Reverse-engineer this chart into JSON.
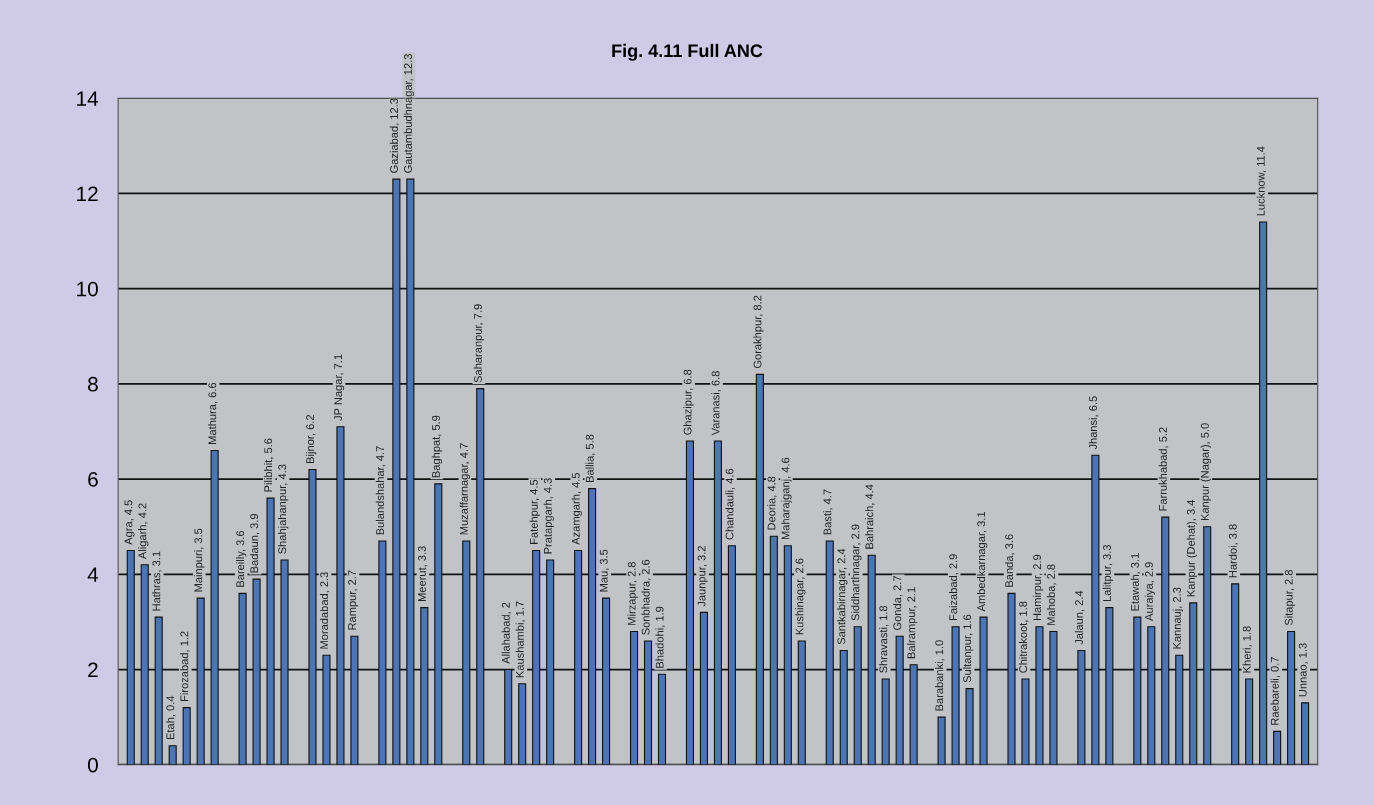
{
  "chart_data": {
    "type": "bar",
    "title": "Fig. 4.11 Full ANC",
    "categories": [
      null,
      null,
      null,
      null,
      null,
      null,
      null,
      null,
      null,
      null,
      null,
      null,
      null,
      null,
      null,
      null,
      null,
      null,
      null,
      null,
      null,
      null,
      null,
      null,
      null,
      null,
      null,
      null,
      null,
      null,
      null,
      null,
      null,
      null,
      null,
      null,
      null,
      null,
      null,
      null,
      null,
      null,
      null,
      null,
      null,
      null,
      null,
      null,
      null,
      null,
      null,
      null,
      null,
      null,
      null,
      null,
      null,
      null,
      null,
      null,
      null,
      null,
      null,
      null,
      null,
      null,
      null,
      null,
      null,
      null,
      null,
      null,
      null,
      null,
      null,
      null,
      null,
      null,
      null,
      null,
      null,
      null,
      null,
      null,
      null
    ],
    "values": [
      4.5,
      4.2,
      3.1,
      0.4,
      1.2,
      3.5,
      6.6,
      null,
      3.6,
      3.9,
      5.6,
      4.3,
      null,
      6.2,
      2.3,
      7.1,
      2.7,
      null,
      4.7,
      12.3,
      12.3,
      3.3,
      5.9,
      null,
      4.7,
      7.9,
      null,
      2,
      1.7,
      4.5,
      4.3,
      null,
      4.5,
      5.8,
      3.5,
      null,
      2.8,
      2.6,
      1.9,
      null,
      6.8,
      3.2,
      6.8,
      4.6,
      null,
      8.2,
      4.8,
      4.6,
      2.6,
      null,
      4.7,
      2.4,
      2.9,
      4.4,
      1.8,
      2.7,
      2.1,
      null,
      1.0,
      2.9,
      1.6,
      3.1,
      null,
      3.6,
      1.8,
      2.9,
      2.8,
      null,
      2.4,
      6.5,
      3.3,
      null,
      3.1,
      2.9,
      5.2,
      2.3,
      3.4,
      5.0,
      null,
      3.8,
      1.8,
      11.4,
      0.7,
      2.8,
      1.3
    ],
    "value_labels": [
      "Agra, 4.5",
      "Aligarh, 4.2",
      "Hathras, 3.1",
      "Etah, 0.4",
      "Firozabad, 1.2",
      "Mainpuri, 3.5",
      "Mathura, 6.6",
      null,
      "Bareilly, 3.6",
      "Badaun, 3.9",
      "Pilibhit, 5.6",
      "Shahjahanpur, 4.3",
      null,
      "Bijnor, 6.2",
      "Moradabad, 2.3",
      "JP Nagar, 7.1",
      "Rampur, 2.7",
      null,
      "Bulandshahar, 4.7",
      "Gaziabad, 12.3",
      "Gautambudhnagar, 12.3",
      "Meerut, 3.3",
      "Baghpat, 5.9",
      null,
      "Muzaffarnagar, 4.7",
      "Saharanpur, 7.9",
      null,
      "Allahabad, 2",
      "Kaushambi, 1.7",
      "Fatehpur, 4.5",
      "Pratapgarh, 4.3",
      null,
      "Azamgarh, 4.5",
      "Ballia, 5.8",
      "Mau, 3.5",
      null,
      "Mirzapur, 2.8",
      "Sonbhadra, 2.6",
      "Bhadohi, 1.9",
      null,
      "Ghazipur, 6.8",
      "Jaunpur, 3.2",
      "Varanasi, 6.8",
      "Chandauli, 4.6",
      null,
      "Gorakhpur, 8.2",
      "Deoria, 4.8",
      "Maharajganj, 4.6",
      "Kushinagar, 2.6",
      null,
      "Basti, 4.7",
      "Santkabirnagar, 2.4",
      "Siddharthnagar, 2.9",
      "Bahraich, 4.4",
      "Shravasti, 1.8",
      "Gonda, 2.7",
      "Balrampur, 2.1",
      null,
      "Barabanki, 1.0",
      "Faizabad, 2.9",
      "Sultanpur, 1.6",
      "Ambedkarnagar, 3.1",
      null,
      "Banda, 3.6",
      "Chitrakoot, 1.8",
      "Hamirpur, 2.9",
      "Mahoba, 2.8",
      null,
      "Jalaun, 2.4",
      "Jhansi, 6.5",
      "Lalitpur, 3.3",
      null,
      "Etawah, 3.1",
      "Auraiya, 2.9",
      "Farrukhabad, 5.2",
      "Kannauj, 2.3",
      "Kanpur (Dehat), 3.4",
      "Kanpur (Nagar), 5.0",
      null,
      "Hardoi, 3.8",
      "Kheri, 1.8",
      "Lucknow, 11.4",
      "Raebareli, 0.7",
      "Sitapur, 2.8",
      "Unnao, 1.3"
    ],
    "color": "#4a76b8",
    "ylim": [
      0,
      14
    ],
    "yticks": [
      0,
      2,
      4,
      6,
      8,
      10,
      12,
      14
    ],
    "grid": "y"
  }
}
